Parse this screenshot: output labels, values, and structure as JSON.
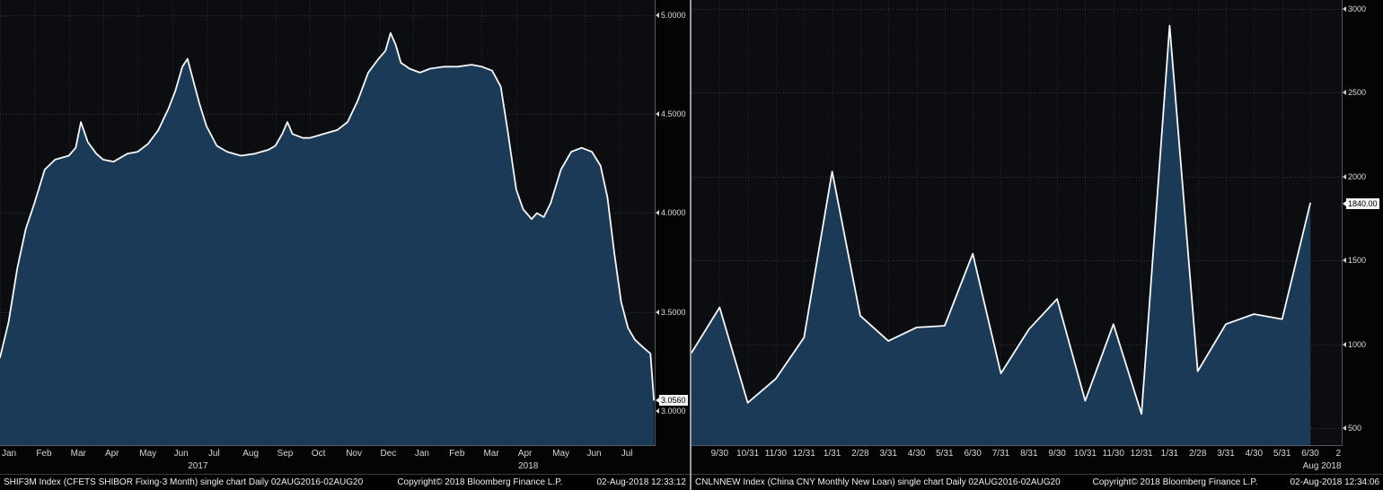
{
  "colors": {
    "background": "#000000",
    "plot_bg": "#0b0d11",
    "area_fill": "#1b3a58",
    "line": "#f8f8f8",
    "grid_h": "#35353b",
    "grid_v": "#2a2a30",
    "axis": "#55585e",
    "tick_text": "#dcdcdc",
    "last_label_bg": "#f2f2f2",
    "last_label_text": "#000000",
    "divider": "#9b9b9b"
  },
  "chart_data": [
    {
      "type": "area",
      "name": "shibor-3m",
      "title": "SHIF3M Index (CFETS SHIBOR Fixing-3 Month)",
      "x_unit": "months from Jan 2017",
      "x_range": [
        0,
        19.05
      ],
      "x": [
        0,
        0.25,
        0.5,
        0.75,
        1.0,
        1.3,
        1.6,
        2.0,
        2.2,
        2.35,
        2.55,
        2.8,
        3.0,
        3.3,
        3.7,
        4.0,
        4.3,
        4.6,
        4.9,
        5.1,
        5.3,
        5.45,
        5.6,
        5.8,
        6.0,
        6.3,
        6.6,
        7.0,
        7.4,
        7.8,
        8.0,
        8.2,
        8.35,
        8.5,
        8.8,
        9.0,
        9.4,
        9.8,
        10.1,
        10.4,
        10.7,
        11.0,
        11.2,
        11.35,
        11.5,
        11.65,
        11.9,
        12.2,
        12.5,
        12.9,
        13.3,
        13.7,
        14.0,
        14.3,
        14.55,
        14.75,
        15.0,
        15.2,
        15.45,
        15.6,
        15.8,
        16.0,
        16.3,
        16.6,
        16.9,
        17.2,
        17.45,
        17.65,
        17.85,
        18.05,
        18.25,
        18.45,
        18.7,
        18.9,
        19.0
      ],
      "values": [
        3.27,
        3.45,
        3.72,
        3.92,
        4.05,
        4.22,
        4.27,
        4.29,
        4.33,
        4.46,
        4.36,
        4.3,
        4.27,
        4.26,
        4.3,
        4.31,
        4.35,
        4.42,
        4.53,
        4.62,
        4.74,
        4.78,
        4.68,
        4.55,
        4.44,
        4.34,
        4.31,
        4.29,
        4.3,
        4.32,
        4.34,
        4.4,
        4.46,
        4.4,
        4.38,
        4.38,
        4.4,
        4.42,
        4.46,
        4.57,
        4.71,
        4.78,
        4.82,
        4.91,
        4.85,
        4.76,
        4.73,
        4.71,
        4.73,
        4.74,
        4.74,
        4.75,
        4.74,
        4.72,
        4.64,
        4.42,
        4.12,
        4.02,
        3.97,
        4.0,
        3.98,
        4.05,
        4.22,
        4.31,
        4.33,
        4.31,
        4.24,
        4.08,
        3.8,
        3.55,
        3.42,
        3.36,
        3.32,
        3.29,
        3.056
      ],
      "ylim": [
        2.823,
        5.077
      ],
      "yticks": [
        {
          "value": 3.0,
          "label": "3.0000"
        },
        {
          "value": 3.5,
          "label": "3.5000"
        },
        {
          "value": 4.0,
          "label": "4.0000"
        },
        {
          "value": 4.5,
          "label": "4.5000"
        },
        {
          "value": 5.0,
          "label": "5.0000"
        }
      ],
      "last_value": 3.056,
      "last_label": "3.0560",
      "tick_anchor": "start",
      "x_ticks": [
        {
          "label": "Jan",
          "pos": 0
        },
        {
          "label": "Feb",
          "pos": 1
        },
        {
          "label": "Mar",
          "pos": 2
        },
        {
          "label": "Apr",
          "pos": 3
        },
        {
          "label": "May",
          "pos": 4
        },
        {
          "label": "Jun",
          "pos": 5
        },
        {
          "label": "Jul",
          "pos": 6
        },
        {
          "label": "Aug",
          "pos": 7
        },
        {
          "label": "Sep",
          "pos": 8
        },
        {
          "label": "Oct",
          "pos": 9
        },
        {
          "label": "Nov",
          "pos": 10
        },
        {
          "label": "Dec",
          "pos": 11
        },
        {
          "label": "Jan",
          "pos": 12
        },
        {
          "label": "Feb",
          "pos": 13
        },
        {
          "label": "Mar",
          "pos": 14
        },
        {
          "label": "Apr",
          "pos": 15
        },
        {
          "label": "May",
          "pos": 16
        },
        {
          "label": "Jun",
          "pos": 17
        },
        {
          "label": "Jul",
          "pos": 18
        }
      ],
      "year_labels": [
        {
          "text": "2017",
          "pos": 5.75,
          "anchor": "middle"
        },
        {
          "text": "2018",
          "pos": 15.35,
          "anchor": "middle"
        }
      ],
      "footer_left": "SHIF3M Index (CFETS SHIBOR Fixing-3 Month) single chart  Daily 02AUG2016-02AUG20",
      "footer_center": "Copyright© 2018 Bloomberg Finance L.P.",
      "footer_right": "02-Aug-2018 12:33:12"
    },
    {
      "type": "area",
      "name": "cny-new-loans",
      "title": "CNLNNEW Index (China CNY Monthly New Loan)",
      "x_unit": "month-end points from 8/31/2016",
      "x_range": [
        0,
        23.15
      ],
      "x": [
        0,
        1,
        2,
        3,
        4,
        5,
        6,
        7,
        8,
        9,
        10,
        11,
        12,
        13,
        14,
        15,
        16,
        17,
        18,
        19,
        20,
        21,
        22
      ],
      "values": [
        949,
        1220,
        651,
        795,
        1040,
        2030,
        1170,
        1020,
        1100,
        1110,
        1540,
        826,
        1090,
        1270,
        663,
        1120,
        584,
        2900,
        839,
        1120,
        1180,
        1150,
        1840
      ],
      "ylim": [
        393,
        3053
      ],
      "yticks": [
        {
          "value": 500,
          "label": "500"
        },
        {
          "value": 1000,
          "label": "1000"
        },
        {
          "value": 1500,
          "label": "1500"
        },
        {
          "value": 2000,
          "label": "2000"
        },
        {
          "value": 2500,
          "label": "2500"
        },
        {
          "value": 3000,
          "label": "3000"
        }
      ],
      "last_value": 1840,
      "last_label": "1840.00",
      "tick_anchor": "middle",
      "x_ticks": [
        {
          "label": "9/30",
          "pos": 1
        },
        {
          "label": "10/31",
          "pos": 2
        },
        {
          "label": "11/30",
          "pos": 3
        },
        {
          "label": "12/31",
          "pos": 4
        },
        {
          "label": "1/31",
          "pos": 5
        },
        {
          "label": "2/28",
          "pos": 6
        },
        {
          "label": "3/31",
          "pos": 7
        },
        {
          "label": "4/30",
          "pos": 8
        },
        {
          "label": "5/31",
          "pos": 9
        },
        {
          "label": "6/30",
          "pos": 10
        },
        {
          "label": "7/31",
          "pos": 11
        },
        {
          "label": "8/31",
          "pos": 12
        },
        {
          "label": "9/30",
          "pos": 13
        },
        {
          "label": "10/31",
          "pos": 14
        },
        {
          "label": "11/30",
          "pos": 15
        },
        {
          "label": "12/31",
          "pos": 16
        },
        {
          "label": "1/31",
          "pos": 17
        },
        {
          "label": "2/28",
          "pos": 18
        },
        {
          "label": "3/31",
          "pos": 19
        },
        {
          "label": "4/30",
          "pos": 20
        },
        {
          "label": "5/31",
          "pos": 21
        },
        {
          "label": "6/30",
          "pos": 22
        },
        {
          "label": "2",
          "pos": 23.0,
          "grid": false
        }
      ],
      "year_labels": [
        {
          "text": "Aug 2018",
          "pos": 23.1,
          "anchor": "end"
        }
      ],
      "footer_left": "CNLNNEW Index (China CNY Monthly New Loan) single chart  Daily 02AUG2016-02AUG20",
      "footer_center": "Copyright© 2018 Bloomberg Finance L.P.",
      "footer_right": "02-Aug-2018 12:34:06"
    }
  ]
}
